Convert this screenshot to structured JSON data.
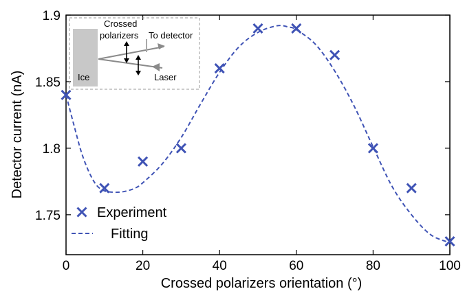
{
  "chart_data": {
    "type": "scatter",
    "title": "",
    "xlabel": "Crossed polarizers orientation (°)",
    "ylabel": "Detector current (nA)",
    "xlim": [
      0,
      100
    ],
    "ylim": [
      1.72,
      1.9
    ],
    "xticks": [
      0,
      20,
      40,
      60,
      80,
      100
    ],
    "xtick_labels": [
      "0",
      "20",
      "40",
      "60",
      "80",
      "100"
    ],
    "yticks": [
      1.75,
      1.8,
      1.85,
      1.9
    ],
    "ytick_labels": [
      "1.75",
      "1.8",
      "1.85",
      "1.9"
    ],
    "grid": false,
    "legend_position": "bottom-left",
    "series": [
      {
        "name": "Experiment",
        "kind": "markers",
        "marker": "x",
        "color": "#3f53b5",
        "x": [
          0,
          10,
          20,
          30,
          40,
          50,
          60,
          70,
          80,
          90,
          100
        ],
        "y": [
          1.84,
          1.77,
          1.79,
          1.8,
          1.86,
          1.89,
          1.89,
          1.87,
          1.8,
          1.77,
          1.73
        ]
      },
      {
        "name": "Fitting",
        "kind": "dashed-line",
        "color": "#3f53b5",
        "x": [
          0,
          2,
          4,
          6,
          8,
          10,
          12,
          14,
          16,
          18,
          20,
          25,
          30,
          35,
          40,
          45,
          50,
          55,
          58,
          60,
          65,
          70,
          75,
          80,
          85,
          90,
          95,
          100
        ],
        "y": [
          1.84,
          1.818,
          1.797,
          1.782,
          1.772,
          1.768,
          1.767,
          1.767,
          1.768,
          1.77,
          1.774,
          1.788,
          1.808,
          1.833,
          1.857,
          1.876,
          1.887,
          1.892,
          1.891,
          1.889,
          1.878,
          1.858,
          1.832,
          1.801,
          1.771,
          1.75,
          1.735,
          1.729
        ]
      }
    ]
  },
  "inset": {
    "block_label": "Ice",
    "polarizers_label_line1": "Crossed",
    "polarizers_label_line2": "polarizers",
    "detector_label": "To detector",
    "laser_label": "Laser"
  },
  "colors": {
    "series": "#3f53b5",
    "inset_gray": "#c8c8c8",
    "inset_beam": "#8a8a8a"
  }
}
